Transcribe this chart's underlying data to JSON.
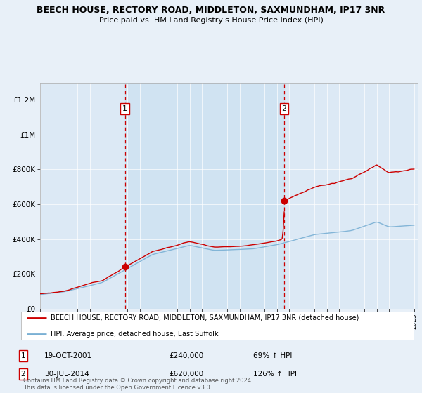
{
  "title": "BEECH HOUSE, RECTORY ROAD, MIDDLETON, SAXMUNDHAM, IP17 3NR",
  "subtitle": "Price paid vs. HM Land Registry's House Price Index (HPI)",
  "background_color": "#e8f0f8",
  "plot_bg_color": "#dce9f5",
  "shade_color": "#c8dff0",
  "ylim": [
    0,
    1300000
  ],
  "yticks": [
    0,
    200000,
    400000,
    600000,
    800000,
    1000000,
    1200000
  ],
  "ytick_labels": [
    "£0",
    "£200K",
    "£400K",
    "£600K",
    "£800K",
    "£1M",
    "£1.2M"
  ],
  "year_start": 1995,
  "year_end": 2025,
  "sale1_year": 2001.8,
  "sale1_price": 240000,
  "sale2_year": 2014.58,
  "sale2_price": 620000,
  "legend_line1": "BEECH HOUSE, RECTORY ROAD, MIDDLETON, SAXMUNDHAM, IP17 3NR (detached house)",
  "legend_line2": "HPI: Average price, detached house, East Suffolk",
  "footer": "Contains HM Land Registry data © Crown copyright and database right 2024.\nThis data is licensed under the Open Government Licence v3.0.",
  "red_color": "#cc0000",
  "blue_color": "#7ab0d4"
}
